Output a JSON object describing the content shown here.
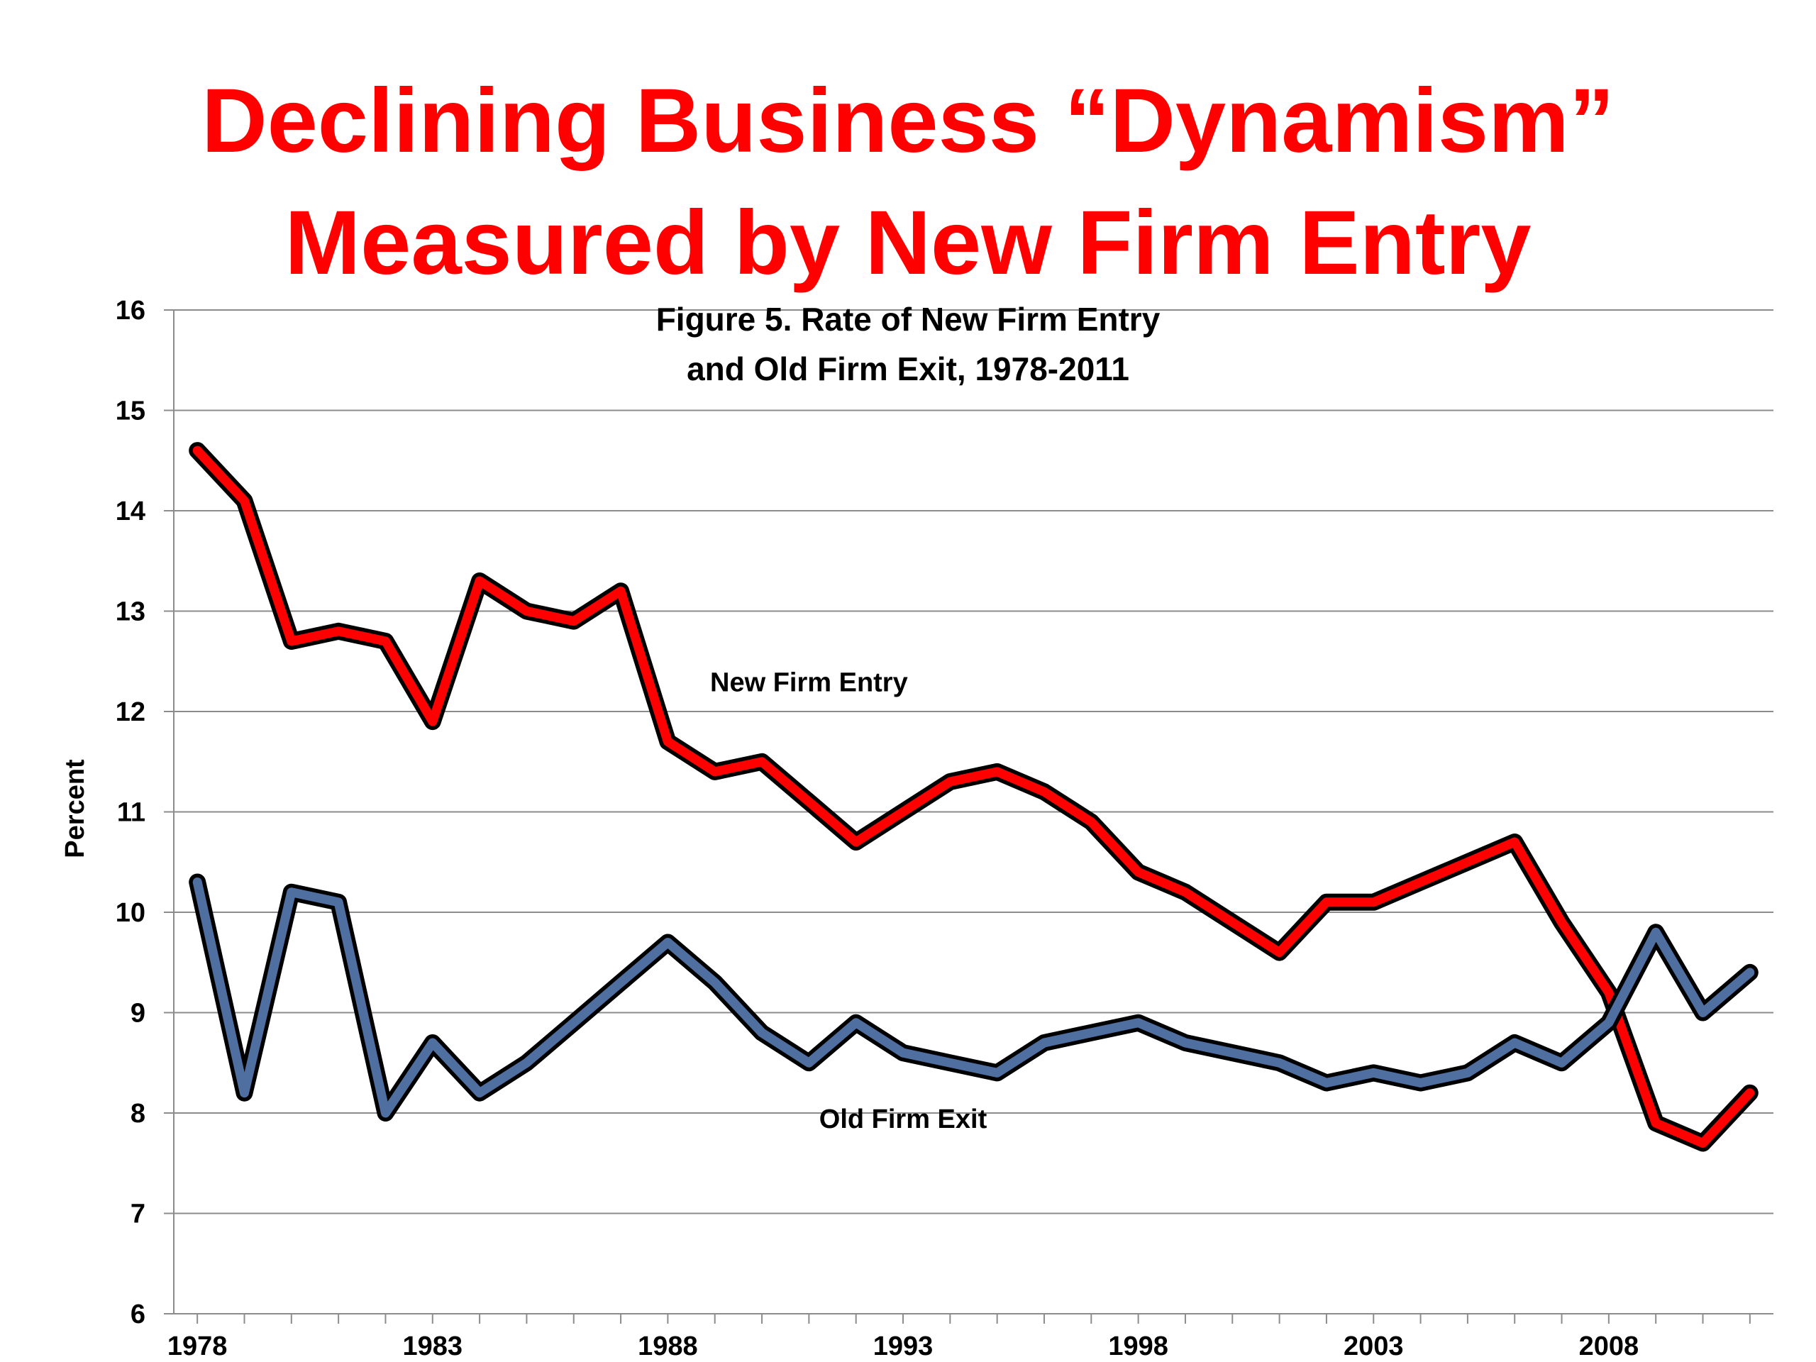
{
  "slide": {
    "title_line1": "Declining Business “Dynamism”",
    "title_line2": "Measured by New Firm Entry"
  },
  "chart_data": {
    "type": "line",
    "title_line1": "Figure 5.  Rate of New Firm Entry",
    "title_line2": "and Old Firm Exit, 1978-2011",
    "xlabel": "",
    "ylabel": "Percent",
    "ylim": [
      6,
      16
    ],
    "yticks": [
      6,
      7,
      8,
      9,
      10,
      11,
      12,
      13,
      14,
      15,
      16
    ],
    "xlim": [
      1977.5,
      2011.5
    ],
    "xtick_labels": [
      "1978",
      "1983",
      "1988",
      "1993",
      "1998",
      "2003",
      "2008"
    ],
    "grid": "horizontal",
    "legend": "none",
    "x": [
      1978,
      1979,
      1980,
      1981,
      1982,
      1983,
      1984,
      1985,
      1986,
      1987,
      1988,
      1989,
      1990,
      1991,
      1992,
      1993,
      1994,
      1995,
      1996,
      1997,
      1998,
      1999,
      2000,
      2001,
      2002,
      2003,
      2004,
      2005,
      2006,
      2007,
      2008,
      2009,
      2010,
      2011
    ],
    "series": [
      {
        "name": "New Firm Entry",
        "color": "#ff0000",
        "values": [
          14.6,
          14.1,
          12.7,
          12.8,
          12.7,
          11.9,
          13.3,
          13.0,
          12.9,
          13.2,
          11.7,
          11.4,
          11.5,
          11.1,
          10.7,
          11.0,
          11.3,
          11.4,
          11.2,
          10.9,
          10.4,
          10.2,
          9.9,
          9.6,
          10.1,
          10.1,
          10.3,
          10.5,
          10.7,
          9.9,
          9.2,
          7.9,
          7.7,
          8.2
        ]
      },
      {
        "name": "Old Firm Exit",
        "color": "#4f6fa1",
        "values": [
          10.3,
          8.2,
          10.2,
          10.1,
          8.0,
          8.7,
          8.2,
          8.5,
          8.9,
          9.3,
          9.7,
          9.3,
          8.8,
          8.5,
          8.9,
          8.6,
          8.5,
          8.4,
          8.7,
          8.8,
          8.9,
          8.7,
          8.6,
          8.5,
          8.3,
          8.4,
          8.3,
          8.4,
          8.7,
          8.5,
          8.9,
          9.8,
          9.0,
          9.4
        ]
      }
    ],
    "annotations": [
      {
        "text": "New Firm Entry",
        "series": 0,
        "x": 1991,
        "y": 12.2
      },
      {
        "text": "Old Firm Exit",
        "series": 1,
        "x": 1993,
        "y": 7.85
      }
    ]
  }
}
